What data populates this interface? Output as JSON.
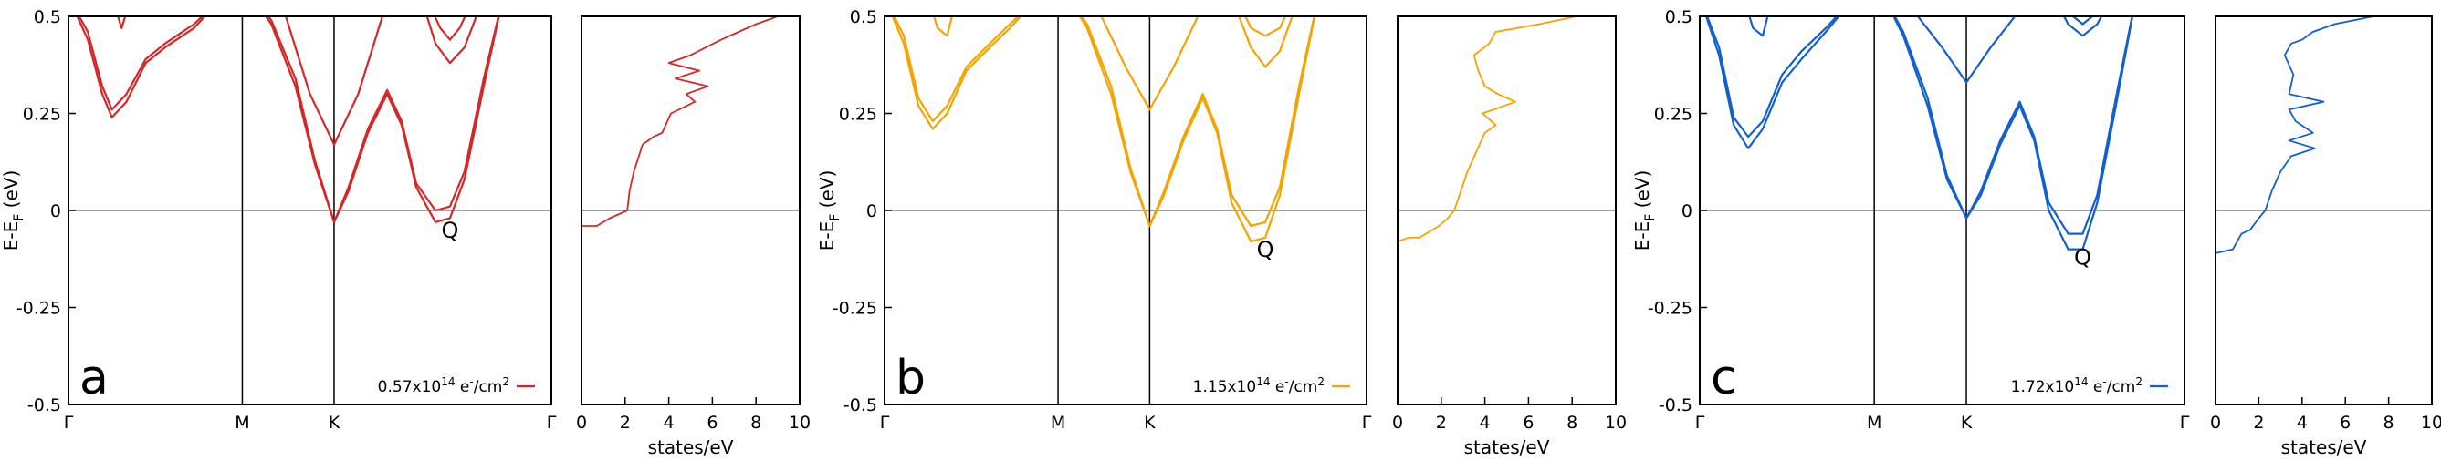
{
  "chart_data": [
    {
      "type": "line",
      "panel_label": "a",
      "color": "#d62728",
      "legend": {
        "coef": "0.57x10",
        "exp": "14",
        "unit": " e",
        "sup2": "-",
        "unit2": "/cm",
        "sup3": "2",
        "placement": "bottom-right"
      },
      "band": {
        "ylabel_main": "E-E",
        "ylabel_sub": "F",
        "ylabel_unit": " (eV)",
        "ylim": [
          -0.5,
          0.5
        ],
        "yticks": [
          "0.5",
          "0.25",
          "0",
          "-0.25",
          "-0.5"
        ],
        "kticks": [
          "Γ",
          "M",
          "K",
          "Γ"
        ],
        "kpos": [
          0,
          0.36,
          0.55,
          1
        ],
        "point_label": {
          "text": "Q",
          "k": 0.79,
          "e": -0.07
        },
        "bands": [
          {
            "x": [
              0,
              0.04,
              0.07,
              0.09,
              0.12,
              0.16,
              0.2,
              0.26,
              0.32
            ],
            "y": [
              0.55,
              0.46,
              0.32,
              0.26,
              0.3,
              0.39,
              0.43,
              0.48,
              0.55
            ]
          },
          {
            "x": [
              0,
              0.04,
              0.07,
              0.09,
              0.12,
              0.16,
              0.2,
              0.26,
              0.32
            ],
            "y": [
              0.55,
              0.44,
              0.3,
              0.24,
              0.28,
              0.38,
              0.42,
              0.47,
              0.55
            ]
          },
          {
            "x": [
              0.09,
              0.11,
              0.13
            ],
            "y": [
              0.55,
              0.47,
              0.55
            ]
          },
          {
            "x": [
              0.38,
              0.42,
              0.47,
              0.51,
              0.55,
              0.58,
              0.62,
              0.66,
              0.69,
              0.72,
              0.76,
              0.79,
              0.82,
              0.86,
              0.9
            ],
            "y": [
              0.55,
              0.48,
              0.32,
              0.12,
              -0.03,
              0.05,
              0.2,
              0.3,
              0.22,
              0.06,
              -0.03,
              -0.02,
              0.08,
              0.32,
              0.55
            ]
          },
          {
            "x": [
              0.38,
              0.42,
              0.47,
              0.51,
              0.55,
              0.58,
              0.62,
              0.66,
              0.69,
              0.72,
              0.76,
              0.79,
              0.82,
              0.86,
              0.9
            ],
            "y": [
              0.55,
              0.49,
              0.34,
              0.13,
              -0.03,
              0.06,
              0.21,
              0.31,
              0.23,
              0.07,
              0.0,
              0.01,
              0.1,
              0.34,
              0.55
            ]
          },
          {
            "x": [
              0.41,
              0.45,
              0.5,
              0.55,
              0.6,
              0.65,
              0.69
            ],
            "y": [
              0.55,
              0.5,
              0.3,
              0.17,
              0.3,
              0.5,
              0.55
            ]
          },
          {
            "x": [
              0.73,
              0.76,
              0.79,
              0.82,
              0.86
            ],
            "y": [
              0.55,
              0.43,
              0.38,
              0.42,
              0.55
            ]
          },
          {
            "x": [
              0.74,
              0.77,
              0.79,
              0.81,
              0.84
            ],
            "y": [
              0.55,
              0.47,
              0.44,
              0.47,
              0.55
            ]
          }
        ]
      },
      "dos": {
        "xlabel": "states/eV",
        "xlim": [
          0,
          10
        ],
        "xticks": [
          "0",
          "2",
          "4",
          "6",
          "8",
          "10"
        ],
        "ylim": [
          -0.5,
          0.5
        ],
        "e": [
          -0.5,
          -0.04,
          -0.04,
          -0.02,
          -0.01,
          0.0,
          0.05,
          0.1,
          0.17,
          0.19,
          0.2,
          0.25,
          0.28,
          0.3,
          0.32,
          0.34,
          0.36,
          0.38,
          0.4,
          0.42,
          0.44,
          0.46,
          0.48,
          0.5
        ],
        "dos": [
          0.0,
          0.0,
          0.7,
          1.3,
          1.7,
          2.1,
          2.2,
          2.4,
          2.8,
          3.3,
          3.7,
          4.1,
          5.2,
          4.8,
          5.8,
          4.3,
          5.4,
          4.0,
          5.0,
          5.7,
          6.4,
          7.2,
          8.0,
          9.0
        ]
      }
    },
    {
      "type": "line",
      "panel_label": "b",
      "color": "#f5a300",
      "legend": {
        "coef": "1.15x10",
        "exp": "14",
        "unit": " e",
        "sup2": "-",
        "unit2": "/cm",
        "sup3": "2",
        "placement": "bottom-right"
      },
      "band": {
        "ylabel_main": "E-E",
        "ylabel_sub": "F",
        "ylabel_unit": " (eV)",
        "ylim": [
          -0.5,
          0.5
        ],
        "yticks": [
          "0.5",
          "0.25",
          "0",
          "-0.25",
          "-0.5"
        ],
        "kticks": [
          "Γ",
          "M",
          "K",
          "Γ"
        ],
        "kpos": [
          0,
          0.36,
          0.55,
          1
        ],
        "point_label": {
          "text": "Q",
          "k": 0.79,
          "e": -0.12
        },
        "bands": [
          {
            "x": [
              0,
              0.04,
              0.07,
              0.1,
              0.13,
              0.17,
              0.21,
              0.26,
              0.32
            ],
            "y": [
              0.55,
              0.43,
              0.27,
              0.21,
              0.25,
              0.36,
              0.41,
              0.47,
              0.55
            ]
          },
          {
            "x": [
              0,
              0.04,
              0.07,
              0.1,
              0.13,
              0.17,
              0.21,
              0.26,
              0.32
            ],
            "y": [
              0.55,
              0.45,
              0.29,
              0.23,
              0.27,
              0.37,
              0.42,
              0.48,
              0.55
            ]
          },
          {
            "x": [
              0.09,
              0.11,
              0.13,
              0.15
            ],
            "y": [
              0.55,
              0.47,
              0.45,
              0.55
            ]
          },
          {
            "x": [
              0.38,
              0.42,
              0.47,
              0.51,
              0.55,
              0.58,
              0.62,
              0.66,
              0.69,
              0.72,
              0.76,
              0.79,
              0.82,
              0.86,
              0.9
            ],
            "y": [
              0.55,
              0.47,
              0.3,
              0.1,
              -0.04,
              0.04,
              0.18,
              0.29,
              0.2,
              0.02,
              -0.08,
              -0.07,
              0.04,
              0.3,
              0.55
            ]
          },
          {
            "x": [
              0.38,
              0.42,
              0.47,
              0.51,
              0.55,
              0.58,
              0.62,
              0.66,
              0.69,
              0.72,
              0.76,
              0.79,
              0.82,
              0.86,
              0.9
            ],
            "y": [
              0.55,
              0.48,
              0.32,
              0.11,
              -0.04,
              0.05,
              0.19,
              0.3,
              0.21,
              0.04,
              -0.04,
              -0.03,
              0.06,
              0.32,
              0.55
            ]
          },
          {
            "x": [
              0.41,
              0.45,
              0.5,
              0.55,
              0.6,
              0.65,
              0.69
            ],
            "y": [
              0.55,
              0.5,
              0.37,
              0.26,
              0.37,
              0.5,
              0.55
            ]
          },
          {
            "x": [
              0.72,
              0.76,
              0.79,
              0.82,
              0.86
            ],
            "y": [
              0.55,
              0.42,
              0.37,
              0.41,
              0.55
            ]
          },
          {
            "x": [
              0.73,
              0.76,
              0.79,
              0.82,
              0.85
            ],
            "y": [
              0.55,
              0.47,
              0.45,
              0.47,
              0.55
            ]
          }
        ]
      },
      "dos": {
        "xlabel": "states/eV",
        "xlim": [
          0,
          10
        ],
        "xticks": [
          "0",
          "2",
          "4",
          "6",
          "8",
          "10"
        ],
        "ylim": [
          -0.5,
          0.5
        ],
        "e": [
          -0.5,
          -0.08,
          -0.07,
          -0.07,
          -0.04,
          -0.02,
          0.0,
          0.05,
          0.1,
          0.15,
          0.2,
          0.22,
          0.25,
          0.28,
          0.3,
          0.32,
          0.36,
          0.4,
          0.43,
          0.46,
          0.48,
          0.5
        ],
        "dos": [
          0.0,
          0.0,
          0.5,
          1.0,
          1.9,
          2.3,
          2.6,
          2.9,
          3.2,
          3.6,
          4.0,
          4.5,
          3.9,
          5.4,
          4.6,
          4.0,
          3.7,
          3.5,
          4.2,
          4.5,
          6.5,
          8.2
        ]
      }
    },
    {
      "type": "line",
      "panel_label": "c",
      "color": "#1060d0",
      "legend": {
        "coef": "1.72x10",
        "exp": "14",
        "unit": " e",
        "sup2": "-",
        "unit2": "/cm",
        "sup3": "2",
        "placement": "bottom-right"
      },
      "band": {
        "ylabel_main": "E-E",
        "ylabel_sub": "F",
        "ylabel_unit": " (eV)",
        "ylim": [
          -0.5,
          0.5
        ],
        "yticks": [
          "0.5",
          "0.25",
          "0",
          "-0.25",
          "-0.5"
        ],
        "kticks": [
          "Γ",
          "M",
          "K",
          "Γ"
        ],
        "kpos": [
          0,
          0.36,
          0.55,
          1
        ],
        "point_label": {
          "text": "Q",
          "k": 0.79,
          "e": -0.14
        },
        "bands": [
          {
            "x": [
              0,
              0.04,
              0.07,
              0.1,
              0.13,
              0.17,
              0.21,
              0.26,
              0.32
            ],
            "y": [
              0.55,
              0.4,
              0.22,
              0.16,
              0.21,
              0.33,
              0.39,
              0.46,
              0.55
            ]
          },
          {
            "x": [
              0,
              0.04,
              0.07,
              0.1,
              0.13,
              0.17,
              0.21,
              0.26,
              0.32
            ],
            "y": [
              0.55,
              0.42,
              0.24,
              0.19,
              0.23,
              0.35,
              0.41,
              0.47,
              0.55
            ]
          },
          {
            "x": [
              0.09,
              0.11,
              0.13,
              0.15
            ],
            "y": [
              0.55,
              0.47,
              0.45,
              0.55
            ]
          },
          {
            "x": [
              0.38,
              0.42,
              0.47,
              0.51,
              0.55,
              0.58,
              0.62,
              0.66,
              0.69,
              0.72,
              0.76,
              0.79,
              0.82,
              0.86,
              0.9
            ],
            "y": [
              0.55,
              0.45,
              0.27,
              0.08,
              -0.02,
              0.04,
              0.17,
              0.27,
              0.18,
              0.0,
              -0.1,
              -0.1,
              0.02,
              0.28,
              0.55
            ]
          },
          {
            "x": [
              0.38,
              0.42,
              0.47,
              0.51,
              0.55,
              0.58,
              0.62,
              0.66,
              0.69,
              0.72,
              0.76,
              0.79,
              0.82,
              0.86,
              0.9
            ],
            "y": [
              0.55,
              0.46,
              0.29,
              0.09,
              -0.02,
              0.05,
              0.18,
              0.28,
              0.19,
              0.02,
              -0.06,
              -0.06,
              0.04,
              0.3,
              0.55
            ]
          },
          {
            "x": [
              0.41,
              0.45,
              0.5,
              0.55,
              0.6,
              0.65,
              0.69
            ],
            "y": [
              0.55,
              0.5,
              0.42,
              0.33,
              0.42,
              0.5,
              0.55
            ]
          },
          {
            "x": [
              0.73,
              0.76,
              0.79,
              0.82,
              0.85
            ],
            "y": [
              0.55,
              0.48,
              0.45,
              0.48,
              0.55
            ]
          },
          {
            "x": [
              0.74,
              0.77,
              0.79,
              0.81,
              0.84
            ],
            "y": [
              0.55,
              0.5,
              0.48,
              0.5,
              0.55
            ]
          }
        ]
      },
      "dos": {
        "xlabel": "states/eV",
        "xlim": [
          0,
          10
        ],
        "xticks": [
          "0",
          "2",
          "4",
          "6",
          "8",
          "10"
        ],
        "ylim": [
          -0.5,
          0.5
        ],
        "e": [
          -0.5,
          -0.11,
          -0.1,
          -0.06,
          -0.05,
          -0.02,
          0.0,
          0.05,
          0.1,
          0.14,
          0.16,
          0.18,
          0.2,
          0.23,
          0.26,
          0.28,
          0.3,
          0.35,
          0.4,
          0.43,
          0.44,
          0.46,
          0.48,
          0.5
        ],
        "dos": [
          0.0,
          0.0,
          0.8,
          1.2,
          1.6,
          2.0,
          2.3,
          2.6,
          3.0,
          3.5,
          4.6,
          3.4,
          4.5,
          3.7,
          3.4,
          5.0,
          3.4,
          3.6,
          3.2,
          3.5,
          4.0,
          4.5,
          5.5,
          7.3
        ]
      }
    }
  ]
}
